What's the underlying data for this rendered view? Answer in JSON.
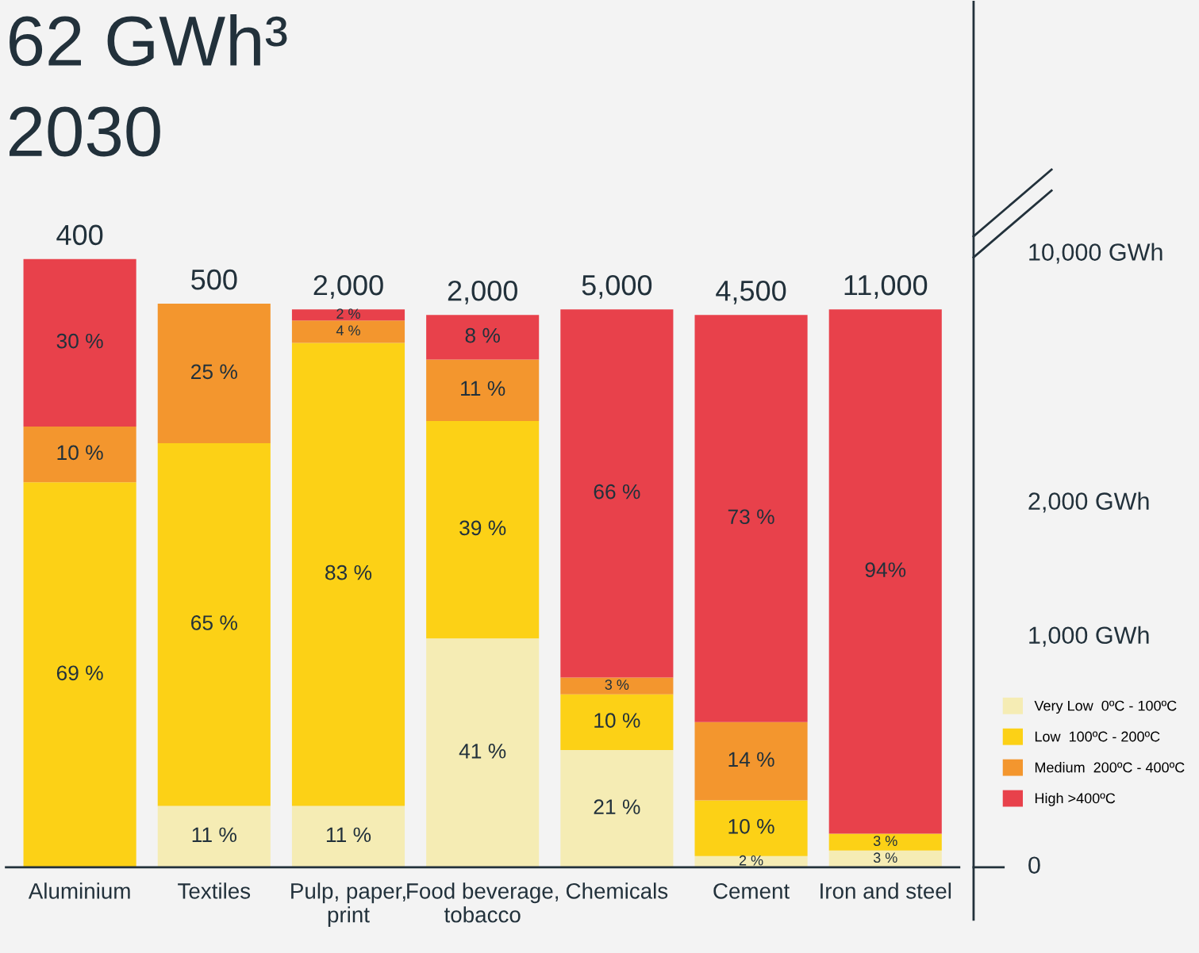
{
  "chart_data": {
    "type": "bar",
    "stacked": true,
    "title": "62 GWh³",
    "subtitle": "2030",
    "categories": [
      "Aluminium",
      "Textiles",
      "Pulp, paper,\nprint",
      "Food beverage,\ntobacco",
      "Chemicals",
      "Cement",
      "Iron and steel"
    ],
    "series": [
      {
        "name": "Very Low  0ºC - 100ºC",
        "color": "#f5ecb4",
        "values": [
          null,
          11,
          11,
          41,
          21,
          2,
          3
        ],
        "value_labels": [
          null,
          "11 %",
          "11 %",
          "41 %",
          "21 %",
          "2 %",
          "3 %"
        ]
      },
      {
        "name": "Low  100ºC - 200ºC",
        "color": "#fcd116",
        "values": [
          69,
          65,
          83,
          39,
          10,
          10,
          3
        ],
        "value_labels": [
          "69 %",
          "65 %",
          "83 %",
          "39 %",
          "10 %",
          "10 %",
          "3 %"
        ]
      },
      {
        "name": "Medium  200ºC - 400ºC",
        "color": "#f3962e",
        "values": [
          10,
          25,
          4,
          11,
          3,
          14,
          null
        ],
        "value_labels": [
          "10 %",
          "25 %",
          "4 %",
          "11 %",
          "3 %",
          "14 %",
          null
        ]
      },
      {
        "name": "High >400ºC",
        "color": "#e8414b",
        "values": [
          30,
          null,
          2,
          8,
          66,
          73,
          94
        ],
        "value_labels": [
          "30 %",
          null,
          "2 %",
          "8 %",
          "66 %",
          "73 %",
          "94%"
        ]
      }
    ],
    "tick_labels": "x",
    "grid": false,
    "legend": "right",
    "annotations": [
      "10,000 GWh",
      "2,000 GWh",
      "1,000 GWh",
      "0",
      "400",
      "500",
      "2,000",
      "2,000",
      "5,000",
      "4,500",
      "11,000"
    ]
  }
}
